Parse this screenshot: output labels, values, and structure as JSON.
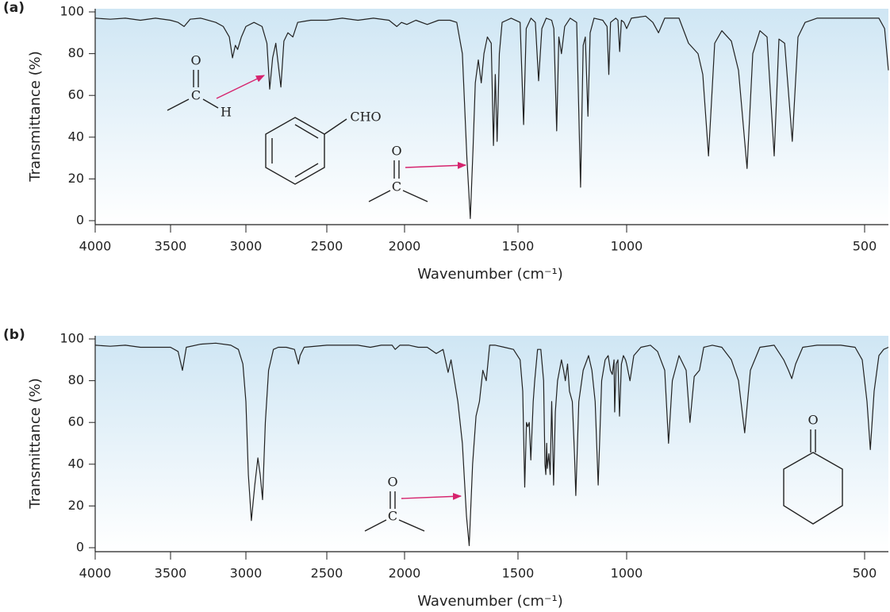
{
  "chart_data": [
    {
      "type": "line",
      "title": "(a)",
      "x_label": "Wavenumber (cm⁻¹)",
      "y_label": "Transmittance (%)",
      "xlim": [
        4000,
        450
      ],
      "ylim": [
        0,
        100
      ],
      "xticks": [
        4000,
        3500,
        3000,
        2500,
        2000,
        1500,
        1000,
        500
      ],
      "yticks": [
        0,
        20,
        40,
        60,
        80,
        100
      ],
      "color": "#222222",
      "annotations": [
        "O",
        "C",
        "H",
        "CHO",
        "O",
        "C"
      ],
      "x": [
        4000,
        3900,
        3800,
        3700,
        3600,
        3500,
        3450,
        3410,
        3370,
        3300,
        3200,
        3150,
        3110,
        3089,
        3070,
        3055,
        3030,
        3000,
        2950,
        2900,
        2870,
        2853,
        2835,
        2815,
        2784,
        2765,
        2740,
        2710,
        2680,
        2600,
        2500,
        2400,
        2300,
        2200,
        2100,
        2050,
        2020,
        1990,
        1950,
        1900,
        1850,
        1800,
        1770,
        1745,
        1725,
        1710,
        1698,
        1688,
        1675,
        1662,
        1650,
        1635,
        1618,
        1608,
        1600,
        1592,
        1582,
        1570,
        1530,
        1490,
        1474,
        1462,
        1440,
        1420,
        1405,
        1390,
        1370,
        1345,
        1335,
        1322,
        1312,
        1300,
        1285,
        1260,
        1230,
        1212,
        1200,
        1190,
        1178,
        1168,
        1150,
        1110,
        1090,
        1082,
        1074,
        1050,
        1040,
        1032,
        1024,
        1012,
        1000,
        990,
        960,
        945,
        933,
        920,
        890,
        870,
        850,
        840,
        828,
        815,
        800,
        780,
        765,
        747,
        735,
        720,
        705,
        690,
        680,
        668,
        652,
        640,
        625,
        600,
        560,
        500,
        470,
        458,
        450
      ],
      "values": [
        97,
        96.5,
        97,
        96,
        97,
        96,
        95,
        93,
        96.5,
        97,
        95,
        93,
        88,
        78,
        84,
        82,
        88,
        93,
        95,
        93,
        85,
        63,
        78,
        85,
        64,
        86,
        90,
        88,
        95,
        96,
        96,
        97,
        96,
        97,
        96,
        93,
        95,
        94,
        96,
        94,
        96,
        96,
        95,
        80,
        30,
        1,
        35,
        66,
        77,
        66,
        80,
        88,
        85,
        36,
        70,
        38,
        80,
        95,
        97,
        95,
        46,
        92,
        97,
        95,
        67,
        92,
        97,
        96,
        92,
        43,
        88,
        80,
        93,
        97,
        95,
        16,
        84,
        88,
        50,
        90,
        97,
        96,
        93,
        70,
        95,
        97,
        96,
        81,
        96,
        95,
        92,
        97,
        98,
        95,
        90,
        97,
        97,
        85,
        80,
        70,
        31,
        85,
        91,
        86,
        72,
        25,
        80,
        91,
        88,
        31,
        87,
        85,
        38,
        88,
        95,
        97,
        97,
        97,
        97,
        92,
        72
      ]
    },
    {
      "type": "line",
      "title": "(b)",
      "x_label": "Wavenumber (cm⁻¹)",
      "y_label": "Transmittance (%)",
      "xlim": [
        4000,
        450
      ],
      "ylim": [
        0,
        100
      ],
      "xticks": [
        4000,
        3500,
        3000,
        2500,
        2000,
        1500,
        1000,
        500
      ],
      "yticks": [
        0,
        20,
        40,
        60,
        80,
        100
      ],
      "color": "#222222",
      "annotations": [
        "O",
        "C",
        "O"
      ],
      "x": [
        4000,
        3900,
        3800,
        3700,
        3600,
        3500,
        3450,
        3421,
        3395,
        3300,
        3200,
        3100,
        3050,
        3020,
        3000,
        2985,
        2966,
        2945,
        2926,
        2912,
        2897,
        2880,
        2860,
        2830,
        2800,
        2750,
        2700,
        2675,
        2665,
        2640,
        2500,
        2400,
        2300,
        2220,
        2150,
        2080,
        2060,
        2030,
        1980,
        1940,
        1900,
        1860,
        1830,
        1808,
        1795,
        1780,
        1765,
        1745,
        1727,
        1715,
        1700,
        1685,
        1670,
        1655,
        1640,
        1625,
        1600,
        1560,
        1520,
        1490,
        1478,
        1469,
        1461,
        1455,
        1448,
        1441,
        1430,
        1423,
        1410,
        1395,
        1382,
        1376,
        1372,
        1368,
        1365,
        1358,
        1352,
        1345,
        1336,
        1328,
        1318,
        1300,
        1290,
        1282,
        1272,
        1263,
        1250,
        1240,
        1234,
        1220,
        1200,
        1175,
        1160,
        1145,
        1131,
        1115,
        1099,
        1085,
        1075,
        1066,
        1058,
        1055,
        1048,
        1040,
        1033,
        1024,
        1015,
        1005,
        1000,
        993,
        985,
        970,
        950,
        935,
        920,
        912,
        904,
        890,
        875,
        867,
        858,
        847,
        838,
        820,
        800,
        780,
        765,
        752,
        740,
        720,
        690,
        670,
        660,
        653,
        645,
        630,
        600,
        550,
        520,
        505,
        495,
        488,
        480,
        470,
        460,
        450
      ],
      "values": [
        97,
        96.5,
        97,
        96,
        96,
        96,
        94,
        85,
        96,
        97.5,
        98,
        97,
        95,
        88,
        70,
        35,
        13,
        30,
        43,
        35,
        23,
        60,
        85,
        95,
        96,
        96,
        95,
        88,
        92,
        96,
        97,
        97,
        97,
        96,
        97,
        97,
        95,
        97,
        97,
        96,
        96,
        93,
        95,
        84,
        90,
        80,
        70,
        50,
        15,
        1,
        40,
        63,
        70,
        85,
        80,
        97,
        97,
        96,
        95,
        90,
        75,
        29,
        60,
        58,
        60,
        42,
        70,
        80,
        95,
        95,
        80,
        40,
        35,
        50,
        38,
        45,
        35,
        70,
        30,
        65,
        80,
        90,
        85,
        80,
        88,
        75,
        70,
        45,
        25,
        70,
        85,
        92,
        85,
        70,
        30,
        80,
        90,
        92,
        85,
        83,
        90,
        65,
        88,
        90,
        63,
        88,
        92,
        90,
        88,
        80,
        92,
        96,
        97,
        94,
        85,
        50,
        80,
        92,
        85,
        60,
        82,
        85,
        96,
        97,
        96,
        90,
        80,
        55,
        85,
        96,
        97,
        90,
        85,
        81,
        88,
        96,
        97,
        97,
        96,
        90,
        70,
        47,
        75,
        92,
        95,
        96
      ]
    }
  ]
}
